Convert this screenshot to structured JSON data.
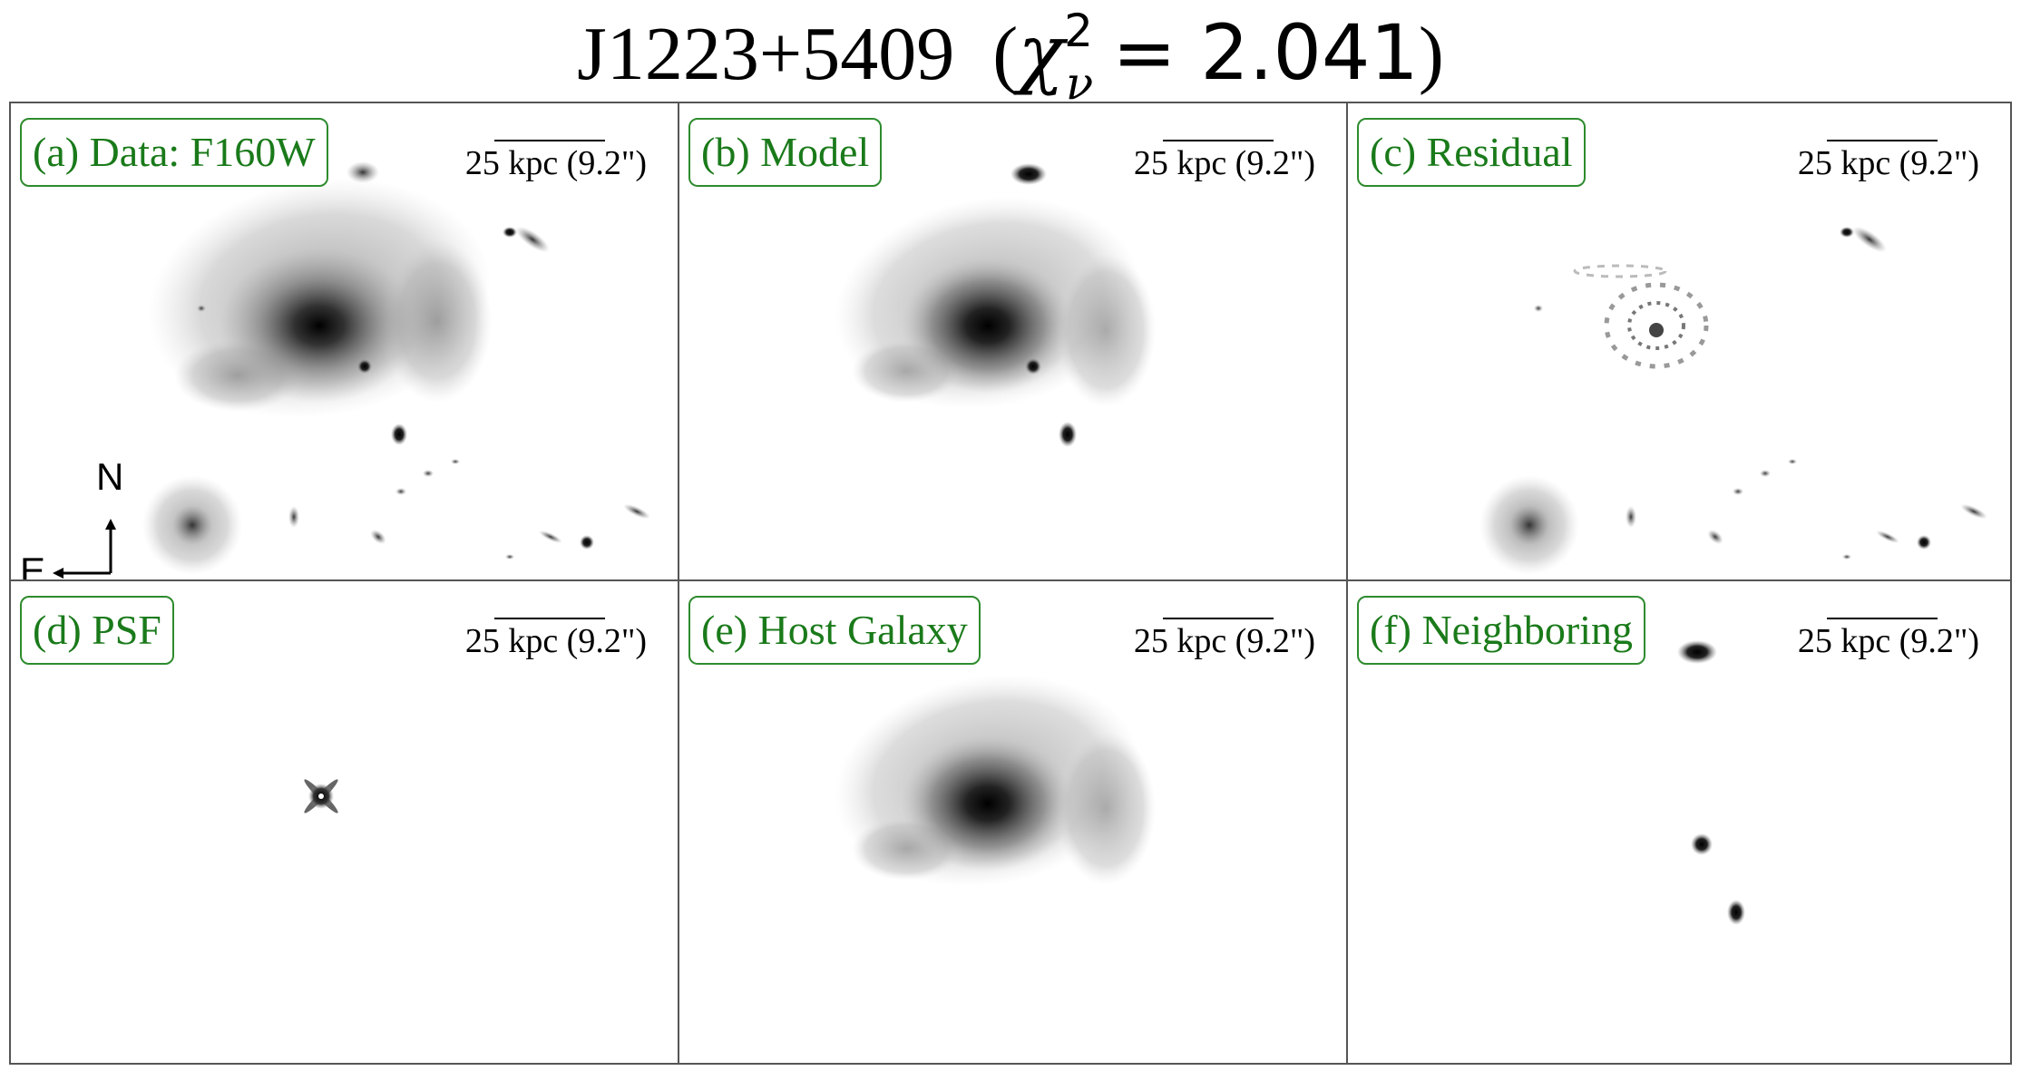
{
  "figure": {
    "object_name": "J1223+5409",
    "chi_symbol": "χ",
    "chi_superscript": "2",
    "chi_subscript": "ν",
    "chi_value": "= 2.041",
    "open_paren": "(",
    "close_paren": ")"
  },
  "scale_bar": {
    "label": "25 kpc (9.2\")"
  },
  "compass": {
    "north": "N",
    "east": "E"
  },
  "panels": [
    {
      "label": "(a) Data: F160W"
    },
    {
      "label": "(b) Model"
    },
    {
      "label": "(c) Residual"
    },
    {
      "label": "(d) PSF"
    },
    {
      "label": "(e) Host Galaxy"
    },
    {
      "label": "(f) Neighboring"
    }
  ],
  "colors": {
    "label_text": "#1a7a1a",
    "label_border": "#2e8b2e",
    "frame": "#555555"
  }
}
